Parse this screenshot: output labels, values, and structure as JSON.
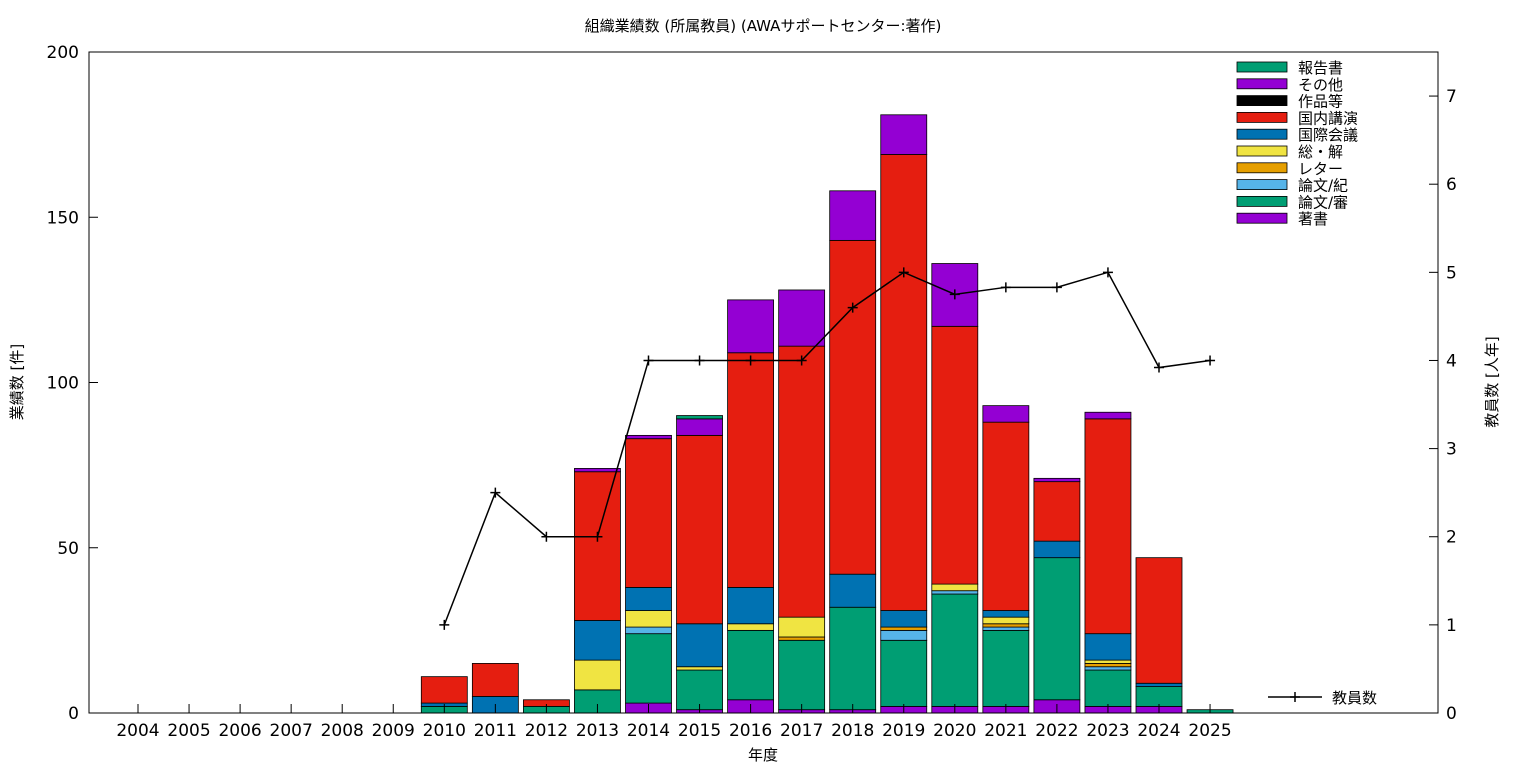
{
  "chart_data": {
    "type": "bar",
    "stacked": true,
    "title": "組織業績数 (所属教員) (AWAサポートセンター:著作)",
    "xlabel": "年度",
    "ylabel": "業績数 [件]",
    "y2label": "教員数 [人年]",
    "ylim": [
      0,
      200
    ],
    "y2lim": [
      0,
      7.5
    ],
    "yticks": [
      0,
      50,
      100,
      150,
      200
    ],
    "y2ticks": [
      0,
      1,
      2,
      3,
      4,
      5,
      6,
      7
    ],
    "categories": [
      "2004",
      "2005",
      "2006",
      "2007",
      "2008",
      "2009",
      "2010",
      "2011",
      "2012",
      "2013",
      "2014",
      "2015",
      "2016",
      "2017",
      "2018",
      "2019",
      "2020",
      "2021",
      "2022",
      "2023",
      "2024",
      "2025"
    ],
    "series": [
      {
        "name": "著書",
        "color": "#9400d3",
        "values": [
          0,
          0,
          0,
          0,
          0,
          0,
          0,
          0,
          0,
          0,
          3,
          1,
          4,
          1,
          1,
          2,
          2,
          2,
          4,
          2,
          2,
          0
        ]
      },
      {
        "name": "論文/審",
        "color": "#009e73",
        "values": [
          0,
          0,
          0,
          0,
          0,
          0,
          2,
          0,
          2,
          7,
          21,
          12,
          21,
          21,
          31,
          20,
          34,
          23,
          43,
          11,
          6,
          1
        ]
      },
      {
        "name": "論文/紀",
        "color": "#56b4e9",
        "values": [
          0,
          0,
          0,
          0,
          0,
          0,
          0,
          0,
          0,
          0,
          2,
          0,
          0,
          0,
          0,
          3,
          1,
          1,
          0,
          1,
          0,
          0
        ]
      },
      {
        "name": "レター",
        "color": "#e69f00",
        "values": [
          0,
          0,
          0,
          0,
          0,
          0,
          0,
          0,
          0,
          0,
          0,
          0,
          0,
          1,
          0,
          1,
          0,
          1,
          0,
          1,
          0,
          0
        ]
      },
      {
        "name": "総・解",
        "color": "#f0e442",
        "values": [
          0,
          0,
          0,
          0,
          0,
          0,
          0,
          0,
          0,
          9,
          5,
          1,
          2,
          6,
          0,
          0,
          2,
          2,
          0,
          1,
          0,
          0
        ]
      },
      {
        "name": "国際会議",
        "color": "#0072b2",
        "values": [
          0,
          0,
          0,
          0,
          0,
          0,
          1,
          5,
          0,
          12,
          7,
          13,
          11,
          0,
          10,
          5,
          0,
          2,
          5,
          8,
          1,
          0
        ]
      },
      {
        "name": "国内講演",
        "color": "#e51e10",
        "values": [
          0,
          0,
          0,
          0,
          0,
          0,
          8,
          10,
          2,
          45,
          45,
          57,
          71,
          82,
          101,
          138,
          78,
          57,
          18,
          65,
          38,
          0
        ]
      },
      {
        "name": "作品等",
        "color": "#000000",
        "values": [
          0,
          0,
          0,
          0,
          0,
          0,
          0,
          0,
          0,
          0,
          0,
          0,
          0,
          0,
          0,
          0,
          0,
          0,
          0,
          0,
          0,
          0
        ]
      },
      {
        "name": "その他",
        "color": "#9400d3",
        "values": [
          0,
          0,
          0,
          0,
          0,
          0,
          0,
          0,
          0,
          1,
          1,
          5,
          16,
          17,
          15,
          12,
          19,
          5,
          1,
          2,
          0,
          0
        ]
      },
      {
        "name": "報告書",
        "color": "#009e73",
        "values": [
          0,
          0,
          0,
          0,
          0,
          0,
          0,
          0,
          0,
          0,
          0,
          1,
          0,
          0,
          0,
          0,
          0,
          0,
          0,
          0,
          0,
          0
        ]
      }
    ],
    "line_series": {
      "name": "教員数",
      "color": "#000000",
      "axis": "y2",
      "x": [
        "2010",
        "2011",
        "2012",
        "2013",
        "2014",
        "2015",
        "2016",
        "2017",
        "2018",
        "2019",
        "2020",
        "2021",
        "2022",
        "2023",
        "2024",
        "2025"
      ],
      "values": [
        1.0,
        2.5,
        2.0,
        2.0,
        4.0,
        4.0,
        4.0,
        4.0,
        4.6,
        5.0,
        4.75,
        4.83,
        4.83,
        5.0,
        3.92,
        4.0
      ]
    },
    "legend_order": [
      "報告書",
      "その他",
      "作品等",
      "国内講演",
      "国際会議",
      "総・解",
      "レター",
      "論文/紀",
      "論文/審",
      "著書"
    ],
    "legend_position": "top-right",
    "grid": false
  }
}
